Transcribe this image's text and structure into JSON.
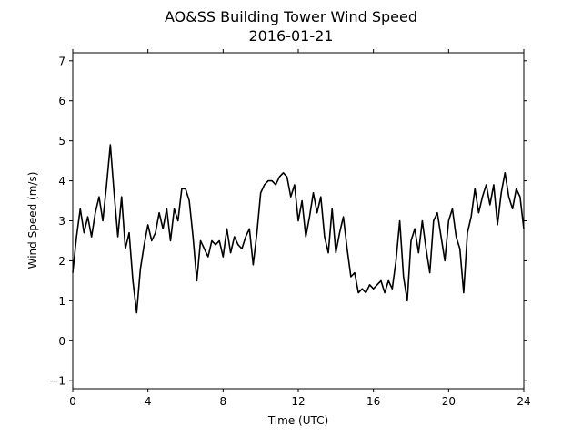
{
  "chart_data": {
    "type": "line",
    "title": "AO&SS Building Tower Wind Speed",
    "subtitle": "2016-01-21",
    "xlabel": "Time (UTC)",
    "ylabel": "Wind Speed (m/s)",
    "xlim": [
      0,
      24
    ],
    "ylim": [
      -1.2,
      7.2
    ],
    "x_ticks": [
      "0",
      "4",
      "8",
      "12",
      "16",
      "20",
      "24"
    ],
    "y_ticks": [
      "−1",
      "0",
      "1",
      "2",
      "3",
      "4",
      "5",
      "6",
      "7"
    ],
    "grid": false,
    "legend": "none",
    "series": [
      {
        "color": "#000000",
        "x": [
          0,
          0.2,
          0.4,
          0.6,
          0.8,
          1.0,
          1.2,
          1.4,
          1.6,
          1.8,
          2.0,
          2.2,
          2.4,
          2.6,
          2.8,
          3.0,
          3.2,
          3.4,
          3.6,
          3.8,
          4.0,
          4.2,
          4.4,
          4.6,
          4.8,
          5.0,
          5.2,
          5.4,
          5.6,
          5.8,
          6.0,
          6.2,
          6.4,
          6.6,
          6.8,
          7.0,
          7.2,
          7.4,
          7.6,
          7.8,
          8.0,
          8.2,
          8.4,
          8.6,
          8.8,
          9.0,
          9.2,
          9.4,
          9.6,
          9.8,
          10.0,
          10.2,
          10.4,
          10.6,
          10.8,
          11.0,
          11.2,
          11.4,
          11.6,
          11.8,
          12.0,
          12.2,
          12.4,
          12.6,
          12.8,
          13.0,
          13.2,
          13.4,
          13.6,
          13.8,
          14.0,
          14.2,
          14.4,
          14.6,
          14.8,
          15.0,
          15.2,
          15.4,
          15.6,
          15.8,
          16.0,
          16.2,
          16.4,
          16.6,
          16.8,
          17.0,
          17.2,
          17.4,
          17.6,
          17.8,
          18.0,
          18.2,
          18.4,
          18.6,
          18.8,
          19.0,
          19.2,
          19.4,
          19.6,
          19.8,
          20.0,
          20.2,
          20.4,
          20.6,
          20.8,
          21.0,
          21.2,
          21.4,
          21.6,
          21.8,
          22.0,
          22.2,
          22.4,
          22.6,
          22.8,
          23.0,
          23.2,
          23.4,
          23.6,
          23.8,
          24.0
        ],
        "y": [
          1.7,
          2.6,
          3.3,
          2.7,
          3.1,
          2.6,
          3.2,
          3.6,
          3.0,
          3.9,
          4.9,
          3.7,
          2.6,
          3.6,
          2.3,
          2.7,
          1.5,
          0.7,
          1.8,
          2.4,
          2.9,
          2.5,
          2.7,
          3.2,
          2.8,
          3.3,
          2.5,
          3.3,
          3.0,
          3.8,
          3.8,
          3.5,
          2.6,
          1.5,
          2.5,
          2.3,
          2.1,
          2.5,
          2.4,
          2.5,
          2.1,
          2.8,
          2.2,
          2.6,
          2.4,
          2.3,
          2.6,
          2.8,
          1.9,
          2.7,
          3.7,
          3.9,
          4.0,
          4.0,
          3.9,
          4.1,
          4.2,
          4.1,
          3.6,
          3.9,
          3.0,
          3.5,
          2.6,
          3.1,
          3.7,
          3.2,
          3.6,
          2.6,
          2.2,
          3.3,
          2.2,
          2.7,
          3.1,
          2.3,
          1.6,
          1.7,
          1.2,
          1.3,
          1.2,
          1.4,
          1.3,
          1.4,
          1.5,
          1.2,
          1.5,
          1.3,
          2.0,
          3.0,
          1.6,
          1.0,
          2.5,
          2.8,
          2.2,
          3.0,
          2.3,
          1.7,
          3.0,
          3.2,
          2.6,
          2.0,
          3.0,
          3.3,
          2.6,
          2.3,
          1.2,
          2.7,
          3.1,
          3.8,
          3.2,
          3.6,
          3.9,
          3.4,
          3.9,
          2.9,
          3.7,
          4.2,
          3.6,
          3.3,
          3.8,
          3.6,
          2.8
        ]
      }
    ]
  }
}
